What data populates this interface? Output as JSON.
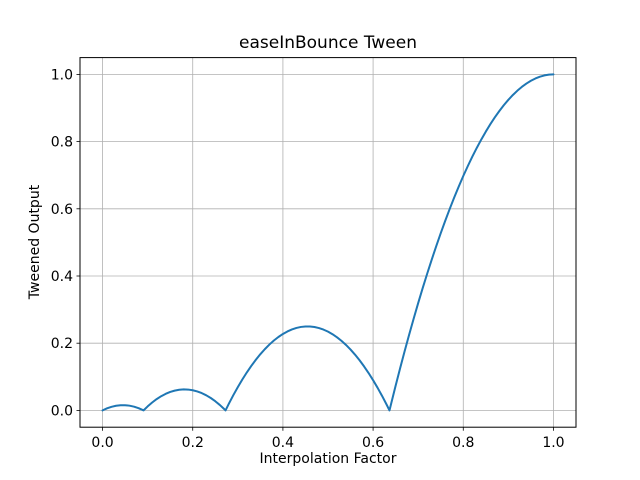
{
  "figure": {
    "background": "#ffffff"
  },
  "chart_data": {
    "type": "line",
    "title": "easeInBounce Tween",
    "xlabel": "Interpolation Factor",
    "ylabel": "Tweened Output",
    "xlim": [
      -0.05,
      1.05
    ],
    "ylim": [
      -0.05,
      1.05
    ],
    "grid": true,
    "legend": "none",
    "line_color": "#1f77b4",
    "grid_color": "#b0b0b0",
    "spine_color": "#000000",
    "xticks": {
      "values": [
        0.0,
        0.2,
        0.4,
        0.6,
        0.8,
        1.0
      ],
      "labels": [
        "0.0",
        "0.2",
        "0.4",
        "0.6",
        "0.8",
        "1.0"
      ]
    },
    "yticks": {
      "values": [
        0.0,
        0.2,
        0.4,
        0.6,
        0.8,
        1.0
      ],
      "labels": [
        "0.0",
        "0.2",
        "0.4",
        "0.6",
        "0.8",
        "1.0"
      ]
    },
    "series": [
      {
        "name": "easeInBounce",
        "points": [
          [
            0,
            0
          ],
          [
            0.01,
            0.00612
          ],
          [
            0.02,
            0.01073
          ],
          [
            0.03,
            0.01382
          ],
          [
            0.04,
            0.0154
          ],
          [
            0.05,
            0.01547
          ],
          [
            0.06,
            0.01403
          ],
          [
            0.07,
            0.01107
          ],
          [
            0.08,
            0.0066
          ],
          [
            0.09,
            0.00062
          ],
          [
            0.09091,
            0
          ],
          [
            0.1,
            0.01187
          ],
          [
            0.11,
            0.02349
          ],
          [
            0.12,
            0.0336
          ],
          [
            0.13,
            0.04219
          ],
          [
            0.14,
            0.04927
          ],
          [
            0.15,
            0.05484
          ],
          [
            0.16,
            0.0589
          ],
          [
            0.17,
            0.06144
          ],
          [
            0.18,
            0.06248
          ],
          [
            0.19,
            0.06199
          ],
          [
            0.2,
            0.06
          ],
          [
            0.21,
            0.05649
          ],
          [
            0.22,
            0.05148
          ],
          [
            0.23,
            0.04494
          ],
          [
            0.24,
            0.0369
          ],
          [
            0.25,
            0.02734
          ],
          [
            0.26,
            0.01628
          ],
          [
            0.27,
            0.00369
          ],
          [
            0.27273,
            0
          ],
          [
            0.28,
            0.0196
          ],
          [
            0.29,
            0.04524
          ],
          [
            0.3,
            0.06937
          ],
          [
            0.31,
            0.09199
          ],
          [
            0.32,
            0.1131
          ],
          [
            0.33,
            0.13269
          ],
          [
            0.34,
            0.15078
          ],
          [
            0.35,
            0.16734
          ],
          [
            0.36,
            0.1824
          ],
          [
            0.37,
            0.19594
          ],
          [
            0.38,
            0.20797
          ],
          [
            0.39,
            0.21849
          ],
          [
            0.4,
            0.2275
          ],
          [
            0.41,
            0.23499
          ],
          [
            0.42,
            0.24097
          ],
          [
            0.43,
            0.24544
          ],
          [
            0.44,
            0.2484
          ],
          [
            0.45,
            0.24984
          ],
          [
            0.46,
            0.24978
          ],
          [
            0.47,
            0.24819
          ],
          [
            0.48,
            0.2451
          ],
          [
            0.49,
            0.24049
          ],
          [
            0.5,
            0.23438
          ],
          [
            0.51,
            0.22674
          ],
          [
            0.52,
            0.2176
          ],
          [
            0.53,
            0.20694
          ],
          [
            0.54,
            0.19478
          ],
          [
            0.55,
            0.18109
          ],
          [
            0.56,
            0.1659
          ],
          [
            0.57,
            0.14919
          ],
          [
            0.58,
            0.13098
          ],
          [
            0.59,
            0.11124
          ],
          [
            0.6,
            0.09
          ],
          [
            0.61,
            0.06724
          ],
          [
            0.62,
            0.04298
          ],
          [
            0.63,
            0.01719
          ],
          [
            0.63636,
            0
          ],
          [
            0.64,
            0.0199
          ],
          [
            0.65,
            0.07359
          ],
          [
            0.66,
            0.12578
          ],
          [
            0.67,
            0.17644
          ],
          [
            0.68,
            0.2256
          ],
          [
            0.69,
            0.27324
          ],
          [
            0.7,
            0.31938
          ],
          [
            0.71,
            0.36399
          ],
          [
            0.72,
            0.4071
          ],
          [
            0.73,
            0.44869
          ],
          [
            0.74,
            0.48878
          ],
          [
            0.75,
            0.52734
          ],
          [
            0.76,
            0.5644
          ],
          [
            0.77,
            0.59994
          ],
          [
            0.78,
            0.63398
          ],
          [
            0.79,
            0.66649
          ],
          [
            0.8,
            0.6975
          ],
          [
            0.81,
            0.72699
          ],
          [
            0.82,
            0.75498
          ],
          [
            0.83,
            0.78144
          ],
          [
            0.84,
            0.8064
          ],
          [
            0.85,
            0.82984
          ],
          [
            0.86,
            0.85178
          ],
          [
            0.87,
            0.87219
          ],
          [
            0.88,
            0.8911
          ],
          [
            0.89,
            0.90849
          ],
          [
            0.9,
            0.92438
          ],
          [
            0.91,
            0.93874
          ],
          [
            0.92,
            0.9516
          ],
          [
            0.93,
            0.96294
          ],
          [
            0.94,
            0.97278
          ],
          [
            0.95,
            0.98109
          ],
          [
            0.96,
            0.9879
          ],
          [
            0.97,
            0.99319
          ],
          [
            0.98,
            0.99698
          ],
          [
            0.99,
            0.99924
          ],
          [
            1,
            1
          ]
        ]
      }
    ]
  }
}
